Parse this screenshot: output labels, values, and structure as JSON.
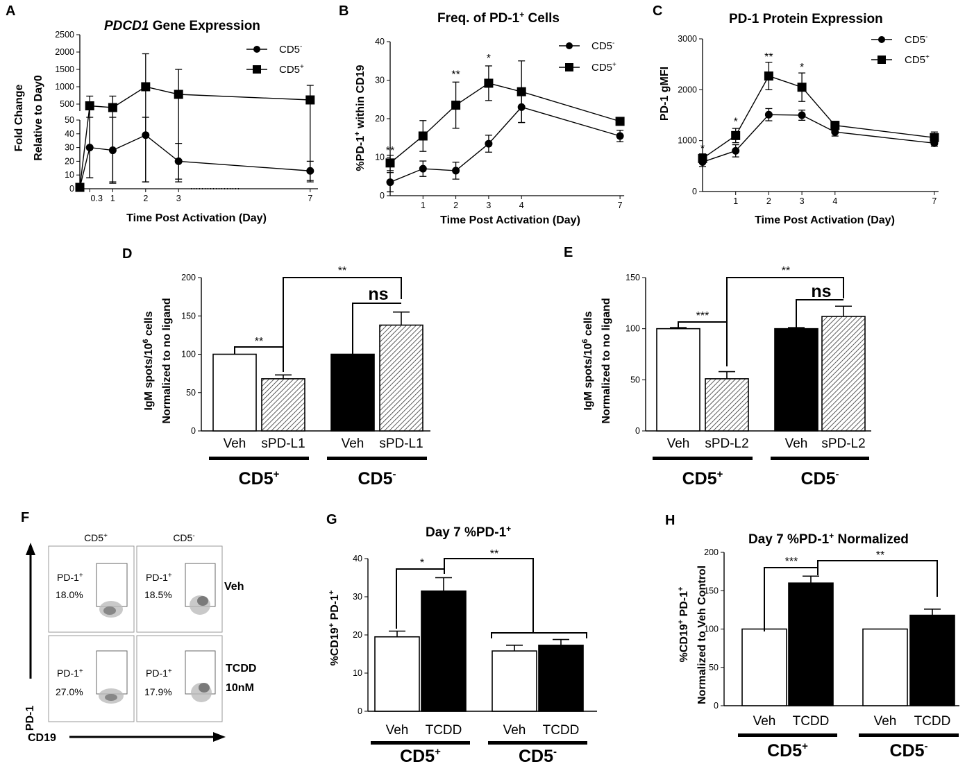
{
  "colors": {
    "black": "#000000",
    "white": "#ffffff",
    "gray": "#888888"
  },
  "chart_data": [
    {
      "id": "A",
      "panel_label": "A",
      "type": "line",
      "title_italic": "PDCD1",
      "title": "Gene Expression",
      "ylabel_line1": "Fold Change",
      "ylabel_line2": "Relative to Day0",
      "xlabel": "Time Post Activation (Day)",
      "x_ticks": [
        "0.3",
        "1",
        "2",
        "3",
        "7"
      ],
      "y_upper_ticks": [
        "2500",
        "2000",
        "1500",
        "1000",
        "500"
      ],
      "y_lower_ticks": [
        "50",
        "40",
        "30",
        "20",
        "10",
        "0"
      ],
      "series": [
        {
          "name": "CD5",
          "name_sup": "-",
          "marker": "circle",
          "x": [
            0,
            0.3,
            1,
            2,
            3,
            7
          ],
          "y": [
            1,
            30,
            28,
            39,
            20,
            13
          ],
          "err": [
            0,
            22,
            24,
            34,
            13,
            7
          ]
        },
        {
          "name": "CD5",
          "name_sup": "+",
          "marker": "square",
          "x": [
            0,
            0.3,
            1,
            2,
            3,
            7
          ],
          "y": [
            1,
            450,
            400,
            1000,
            780,
            620
          ],
          "err": [
            0,
            280,
            330,
            950,
            720,
            420
          ]
        }
      ]
    },
    {
      "id": "B",
      "panel_label": "B",
      "type": "line",
      "title_pre": "Freq. of PD-1",
      "title_sup": "+",
      "title_post": " Cells",
      "ylabel_pre": "%PD-1",
      "ylabel_sup": "+",
      "ylabel_post": " within CD19",
      "xlabel": "Time Post Activation (Day)",
      "x_ticks": [
        "1",
        "2",
        "3",
        "4",
        "7"
      ],
      "y_ticks": [
        "0",
        "10",
        "20",
        "30",
        "40"
      ],
      "ylim": [
        0,
        40
      ],
      "significance": [
        "**",
        "**",
        "*"
      ],
      "series": [
        {
          "name": "CD5",
          "name_sup": "-",
          "marker": "circle",
          "x": [
            0,
            1,
            2,
            3,
            4,
            7
          ],
          "y": [
            3.5,
            7,
            6.5,
            13.5,
            23,
            15.5
          ],
          "err": [
            2.5,
            2,
            2.2,
            2.2,
            4,
            1.5
          ]
        },
        {
          "name": "CD5",
          "name_sup": "+",
          "marker": "square",
          "x": [
            0,
            1,
            2,
            3,
            4,
            7
          ],
          "y": [
            8.5,
            15.5,
            23.5,
            29.2,
            27,
            19.3
          ],
          "err": [
            2,
            4,
            6,
            4.5,
            8,
            0.8
          ]
        }
      ]
    },
    {
      "id": "C",
      "panel_label": "C",
      "type": "line",
      "title": "PD-1 Protein Expression",
      "ylabel": "PD-1 gMFI",
      "xlabel": "Time Post Activation (Day)",
      "x_ticks": [
        "1",
        "2",
        "3",
        "4",
        "7"
      ],
      "y_ticks": [
        "0",
        "1000",
        "2000",
        "3000"
      ],
      "ylim": [
        0,
        3000
      ],
      "significance": [
        "*",
        "*",
        "**",
        "*"
      ],
      "series": [
        {
          "name": "CD5",
          "name_sup": "-",
          "marker": "circle",
          "x": [
            0,
            1,
            2,
            3,
            4,
            7
          ],
          "y": [
            580,
            800,
            1510,
            1500,
            1170,
            950
          ],
          "err": [
            90,
            120,
            120,
            100,
            80,
            60
          ]
        },
        {
          "name": "CD5",
          "name_sup": "+",
          "marker": "square",
          "x": [
            0,
            1,
            2,
            3,
            4,
            7
          ],
          "y": [
            650,
            1100,
            2270,
            2050,
            1300,
            1060
          ],
          "err": [
            90,
            140,
            270,
            280,
            80,
            110
          ]
        }
      ]
    },
    {
      "id": "D",
      "panel_label": "D",
      "type": "bar",
      "ylabel_pre": "IgM spots/10",
      "ylabel_sup": "6",
      "ylabel_post": " cells",
      "ylabel_line2": "Normalized to no ligand",
      "y_ticks": [
        "0",
        "50",
        "100",
        "150",
        "200"
      ],
      "ylim": [
        0,
        200
      ],
      "categories": [
        "Veh",
        "sPD-L1",
        "Veh",
        "sPD-L1"
      ],
      "values": [
        100,
        68,
        100,
        138
      ],
      "errors": [
        0,
        5,
        0,
        17
      ],
      "fills": [
        "white",
        "hatch",
        "black",
        "hatch"
      ],
      "groups": [
        {
          "name": "CD5",
          "sup": "+"
        },
        {
          "name": "CD5",
          "sup": "-"
        }
      ],
      "significance": [
        "**",
        "**",
        "ns"
      ]
    },
    {
      "id": "E",
      "panel_label": "E",
      "type": "bar",
      "ylabel_pre": "IgM spots/10",
      "ylabel_sup": "6",
      "ylabel_post": " cells",
      "ylabel_line2": "Normalized to no ligand",
      "y_ticks": [
        "0",
        "50",
        "100",
        "150"
      ],
      "ylim": [
        0,
        150
      ],
      "categories": [
        "Veh",
        "sPD-L2",
        "Veh",
        "sPD-L2"
      ],
      "values": [
        100,
        51,
        100,
        112
      ],
      "errors": [
        1,
        7,
        1,
        10
      ],
      "fills": [
        "white",
        "hatch",
        "black",
        "hatch"
      ],
      "groups": [
        {
          "name": "CD5",
          "sup": "+"
        },
        {
          "name": "CD5",
          "sup": "-"
        }
      ],
      "significance": [
        "***",
        "**",
        "ns"
      ]
    },
    {
      "id": "G",
      "panel_label": "G",
      "type": "bar",
      "title_pre": "Day 7 %PD-1",
      "title_sup": "+",
      "ylabel_pre": "%CD19",
      "ylabel_sup1": "+",
      "ylabel_mid": " PD-1",
      "ylabel_sup2": "+",
      "y_ticks": [
        "0",
        "10",
        "20",
        "30",
        "40"
      ],
      "ylim": [
        0,
        40
      ],
      "categories": [
        "Veh",
        "TCDD",
        "Veh",
        "TCDD"
      ],
      "values": [
        19.5,
        31.5,
        15.8,
        17.3
      ],
      "errors": [
        1.5,
        3.5,
        1.5,
        1.5
      ],
      "fills": [
        "white",
        "black",
        "white",
        "black"
      ],
      "groups": [
        {
          "name": "CD5",
          "sup": "+"
        },
        {
          "name": "CD5",
          "sup": "-"
        }
      ],
      "significance": [
        "*",
        "**"
      ]
    },
    {
      "id": "H",
      "panel_label": "H",
      "type": "bar",
      "title_pre": "Day 7 %PD-1",
      "title_sup": "+",
      "title_post": " Normalized",
      "ylabel_pre": "%CD19",
      "ylabel_sup1": "+",
      "ylabel_mid": " PD-1",
      "ylabel_sup2": "+",
      "ylabel_line2": "Normalized to Veh Control",
      "y_ticks": [
        "0",
        "50",
        "100",
        "150",
        "200"
      ],
      "ylim": [
        0,
        200
      ],
      "categories": [
        "Veh",
        "TCDD",
        "Veh",
        "TCDD"
      ],
      "values": [
        100,
        160,
        100,
        118
      ],
      "errors": [
        0,
        9,
        0,
        8
      ],
      "fills": [
        "white",
        "black",
        "white",
        "black"
      ],
      "groups": [
        {
          "name": "CD5",
          "sup": "+"
        },
        {
          "name": "CD5",
          "sup": "-"
        }
      ],
      "significance": [
        "***",
        "**"
      ]
    }
  ],
  "flow": {
    "panel_label": "F",
    "col_headers": [
      {
        "name": "CD5",
        "sup": "+"
      },
      {
        "name": "CD5",
        "sup": "-"
      }
    ],
    "row_labels": [
      "Veh",
      "TCDD",
      "10nM"
    ],
    "gate_label": "PD-1",
    "gate_sup": "+",
    "percents": [
      "18.0%",
      "18.5%",
      "27.0%",
      "17.9%"
    ],
    "y_axis": "PD-1",
    "x_axis": "CD19"
  }
}
